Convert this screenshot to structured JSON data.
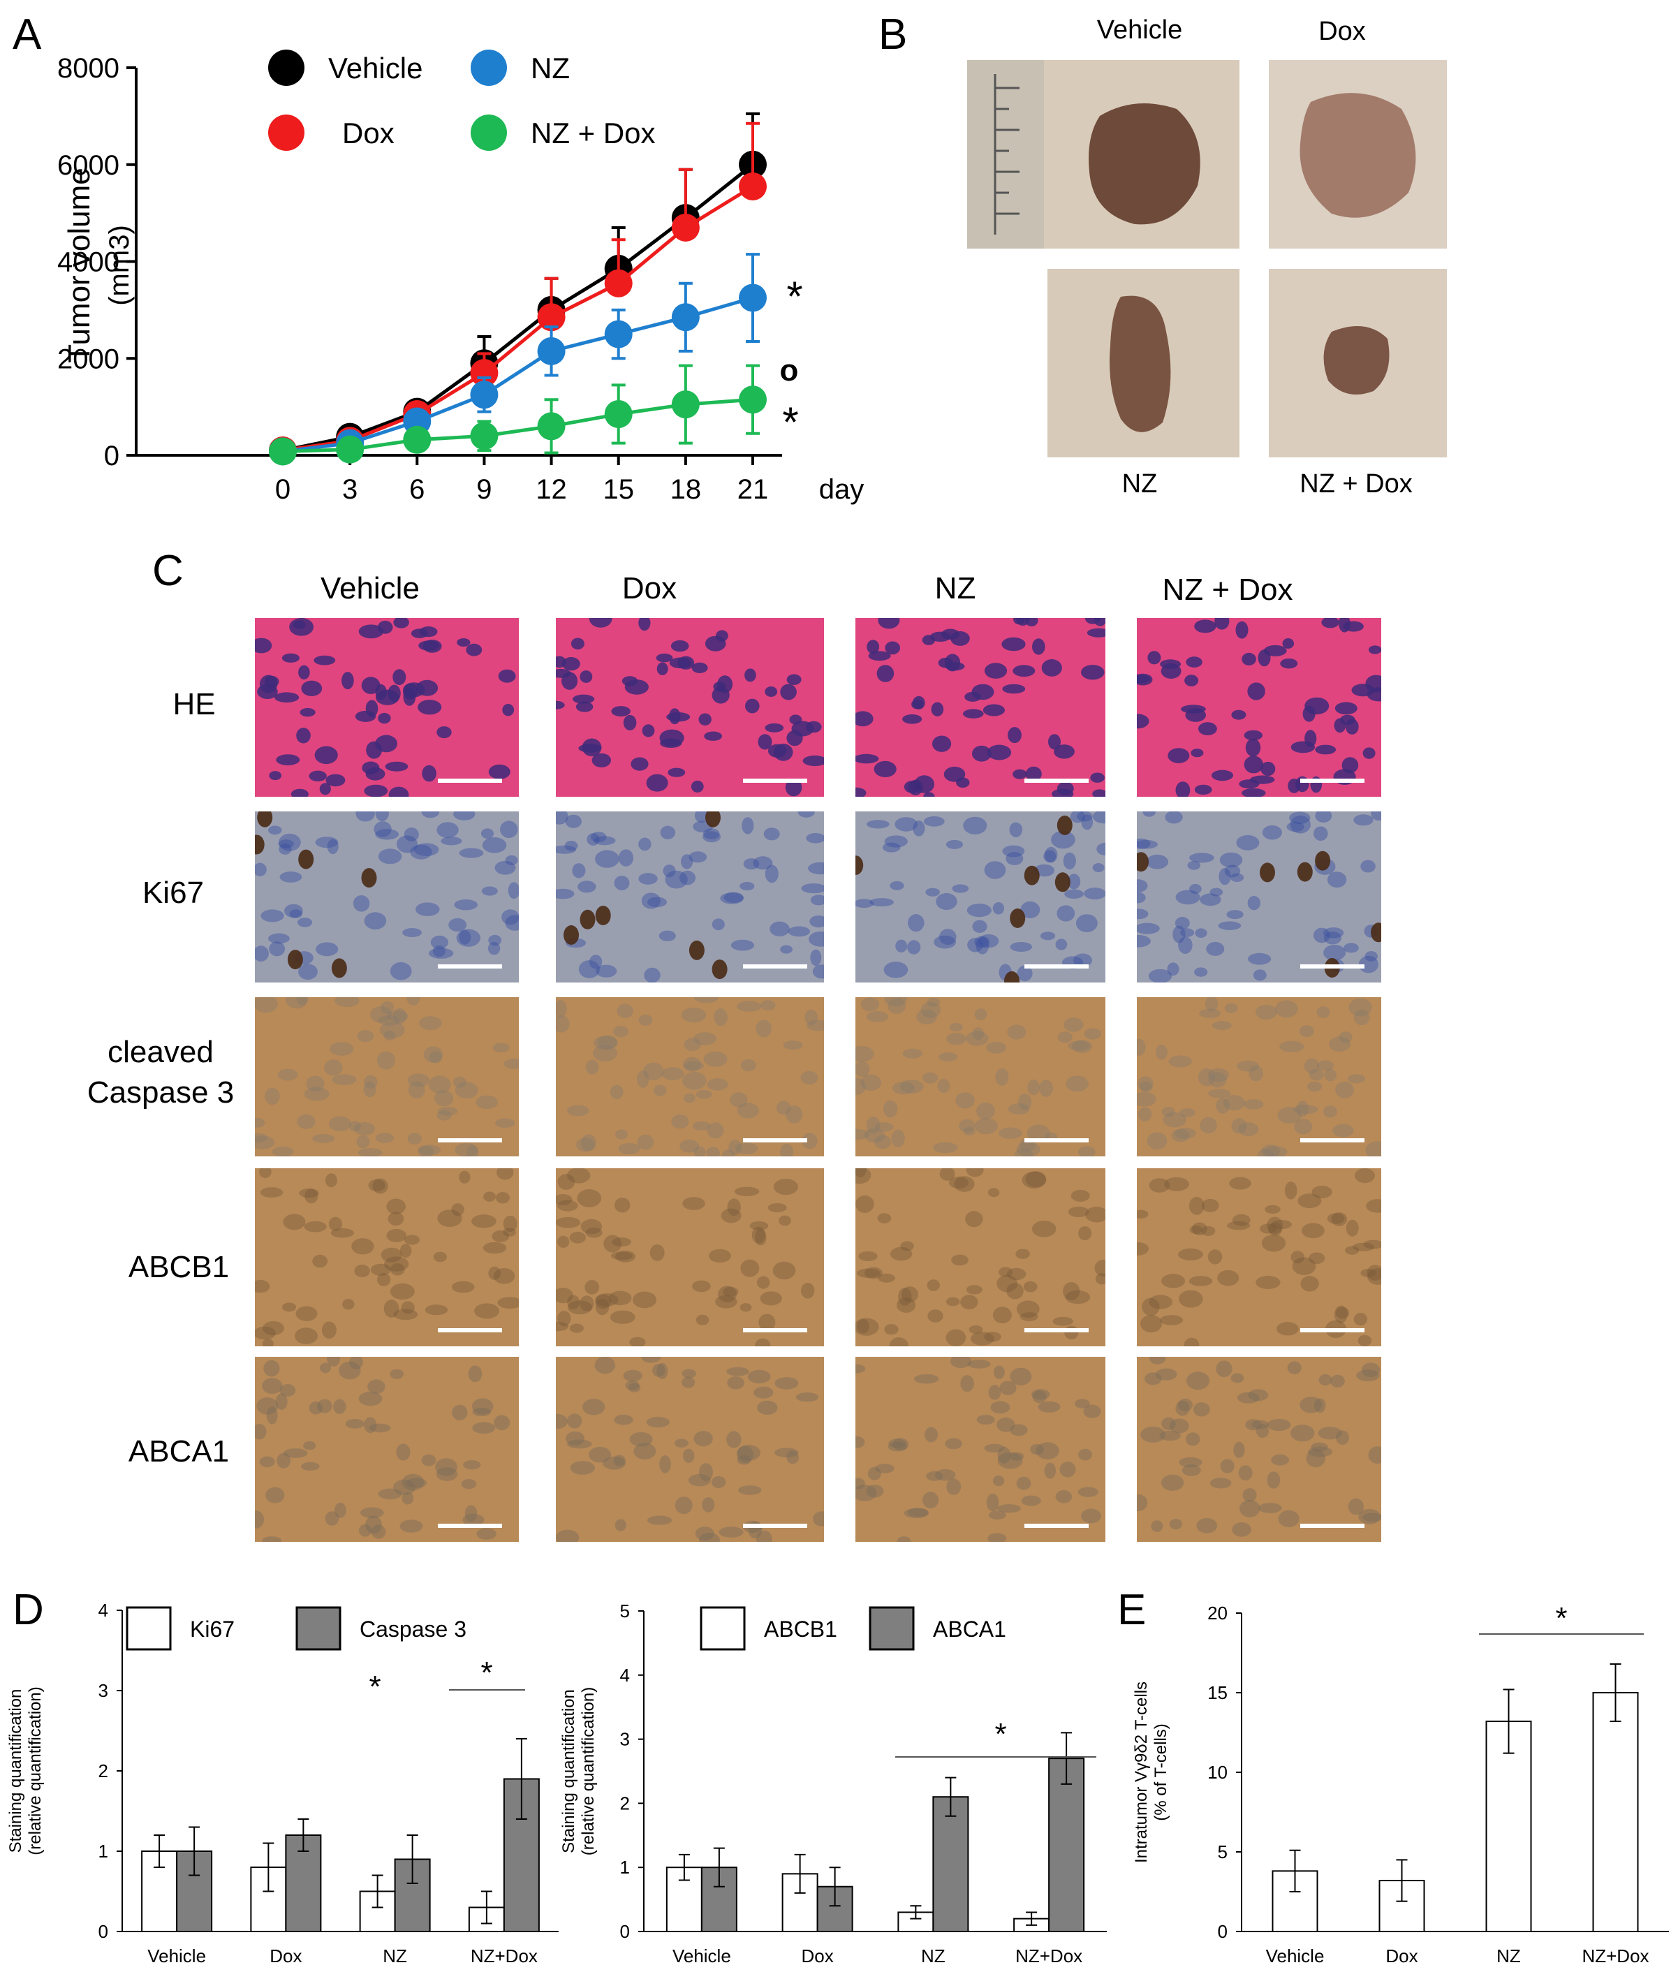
{
  "panel_labels": {
    "a": "A",
    "b": "B",
    "c": "C",
    "d": "D",
    "e": "E"
  },
  "colors": {
    "vehicle": "#000000",
    "dox": "#ee1c1c",
    "nz": "#1f7fcf",
    "nz_dox": "#1db954",
    "bar_light": "#ffffff",
    "bar_dark": "#7f7f7f",
    "he_stain": "#e0457f",
    "ki67_stain": "#9a9fb0",
    "dab_stain": "#b88a58"
  },
  "panel_b": {
    "top_labels": [
      "Vehicle",
      "Dox"
    ],
    "bottom_labels": [
      "NZ",
      "NZ + Dox"
    ]
  },
  "panel_c": {
    "columns": [
      "Vehicle",
      "Dox",
      "NZ",
      "NZ + Dox"
    ],
    "rows": [
      "HE",
      "Ki67",
      "cleaved\nCaspase 3",
      "ABCB1",
      "ABCA1"
    ]
  },
  "chart_data": [
    {
      "id": "A",
      "type": "line",
      "ylabel": "Tumor volume (mm3)",
      "xlabel": "day",
      "x": [
        0,
        3,
        6,
        9,
        12,
        15,
        18,
        21
      ],
      "ylim": [
        0,
        8000
      ],
      "yticks": [
        0,
        2000,
        4000,
        6000,
        8000
      ],
      "series": [
        {
          "name": "Vehicle",
          "color": "#000000",
          "values": [
            100,
            380,
            900,
            1900,
            3000,
            3850,
            4900,
            6000
          ],
          "err": [
            0,
            80,
            120,
            550,
            650,
            850,
            1000,
            1050
          ]
        },
        {
          "name": "Dox",
          "color": "#ee1c1c",
          "values": [
            100,
            300,
            850,
            1700,
            2850,
            3550,
            4700,
            5550
          ],
          "err": [
            0,
            70,
            120,
            400,
            800,
            900,
            1200,
            1300
          ]
        },
        {
          "name": "NZ",
          "color": "#1f7fcf",
          "values": [
            80,
            250,
            700,
            1250,
            2150,
            2500,
            2850,
            3250
          ],
          "err": [
            0,
            60,
            100,
            350,
            500,
            500,
            700,
            900
          ]
        },
        {
          "name": "NZ + Dox",
          "color": "#1db954",
          "values": [
            80,
            120,
            320,
            400,
            600,
            850,
            1050,
            1150
          ],
          "err": [
            0,
            40,
            80,
            300,
            550,
            600,
            800,
            700
          ]
        }
      ],
      "annotations": [
        "*",
        "o",
        "*"
      ]
    },
    {
      "id": "D-left",
      "type": "bar",
      "ylabel": "Staining quantification\n(relative quantification)",
      "categories": [
        "Vehicle",
        "Dox",
        "NZ",
        "NZ+Dox"
      ],
      "ylim": [
        0,
        4
      ],
      "yticks": [
        0,
        1,
        2,
        3,
        4
      ],
      "series": [
        {
          "name": "Ki67",
          "color": "#ffffff",
          "values": [
            1.0,
            0.8,
            0.5,
            0.3
          ],
          "err": [
            0.2,
            0.3,
            0.2,
            0.2
          ]
        },
        {
          "name": "Caspase 3",
          "color": "#7f7f7f",
          "values": [
            1.0,
            1.2,
            0.9,
            1.9
          ],
          "err": [
            0.3,
            0.2,
            0.3,
            0.5
          ]
        }
      ],
      "annotations": [
        "*",
        "*"
      ]
    },
    {
      "id": "D-right",
      "type": "bar",
      "ylabel": "Staining quantification\n(relative quantification)",
      "categories": [
        "Vehicle",
        "Dox",
        "NZ",
        "NZ+Dox"
      ],
      "ylim": [
        0,
        5
      ],
      "yticks": [
        0,
        1,
        2,
        3,
        4,
        5
      ],
      "series": [
        {
          "name": "ABCB1",
          "color": "#ffffff",
          "values": [
            1.0,
            0.9,
            0.3,
            0.2
          ],
          "err": [
            0.2,
            0.3,
            0.1,
            0.1
          ]
        },
        {
          "name": "ABCA1",
          "color": "#7f7f7f",
          "values": [
            1.0,
            0.7,
            2.1,
            2.7
          ],
          "err": [
            0.3,
            0.3,
            0.3,
            0.4
          ]
        }
      ],
      "annotations": [
        "*"
      ]
    },
    {
      "id": "E",
      "type": "bar",
      "ylabel": "Intratumor Vγ9δ2 T-cells\n(% of T-cells)",
      "categories": [
        "Vehicle",
        "Dox",
        "NZ",
        "NZ+Dox"
      ],
      "ylim": [
        0,
        20
      ],
      "yticks": [
        0,
        5,
        10,
        15,
        20
      ],
      "series": [
        {
          "name": "",
          "color": "#ffffff",
          "values": [
            3.8,
            3.2,
            13.2,
            15.0
          ],
          "err": [
            1.3,
            1.3,
            2.0,
            1.8
          ]
        }
      ],
      "annotations": [
        "*"
      ]
    }
  ]
}
